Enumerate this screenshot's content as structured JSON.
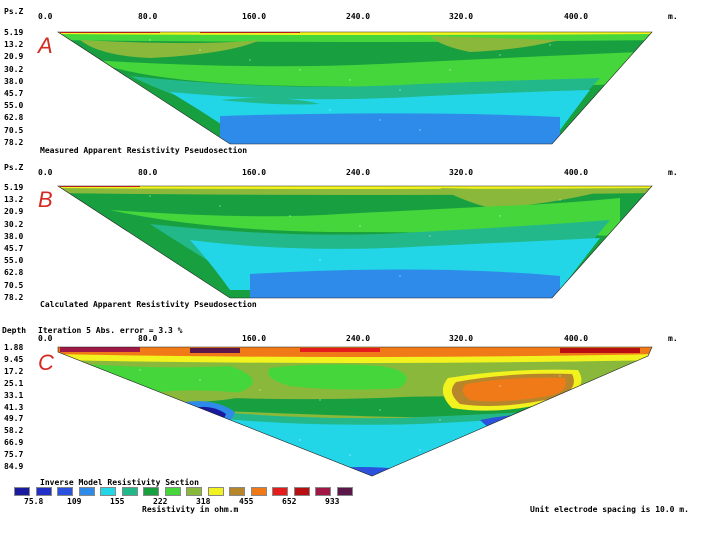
{
  "panels": [
    {
      "letter": "A",
      "axis_label": "Ps.Z",
      "depths": [
        "5.19",
        "13.2",
        "20.9",
        "30.2",
        "38.0",
        "45.7",
        "55.0",
        "62.8",
        "70.5",
        "78.2"
      ],
      "caption": "Measured Apparent Resistivity Pseudosection"
    },
    {
      "letter": "B",
      "axis_label": "Ps.Z",
      "depths": [
        "5.19",
        "13.2",
        "20.9",
        "30.2",
        "38.0",
        "45.7",
        "55.0",
        "62.8",
        "70.5",
        "78.2"
      ],
      "caption": "Calculated Apparent Resistivity Pseudosection"
    },
    {
      "letter": "C",
      "axis_label": "Depth",
      "header": "Iteration 5 Abs. error = 3.3 %",
      "depths": [
        "1.88",
        "9.45",
        "17.2",
        "25.1",
        "33.1",
        "41.3",
        "49.7",
        "58.2",
        "66.9",
        "75.7",
        "84.9"
      ],
      "caption": "Inverse Model Resistivity Section"
    }
  ],
  "x_ticks": [
    "0.0",
    "80.0",
    "160.0",
    "240.0",
    "320.0",
    "400.0"
  ],
  "x_unit": "m.",
  "legend": {
    "colors": [
      "#1a1a9e",
      "#2230c8",
      "#2a52dd",
      "#2e8bea",
      "#22d6e8",
      "#22b88a",
      "#18a040",
      "#45d63c",
      "#8ab83a",
      "#f2f21e",
      "#b8862a",
      "#f07a18",
      "#e41c1c",
      "#b81010",
      "#a01846",
      "#5a184a"
    ],
    "labels": [
      "75.8",
      "109",
      "155",
      "222",
      "318",
      "455",
      "652",
      "933"
    ],
    "title": "Resistivity in ohm.m"
  },
  "footer": "Unit electrode spacing is 10.0 m."
}
